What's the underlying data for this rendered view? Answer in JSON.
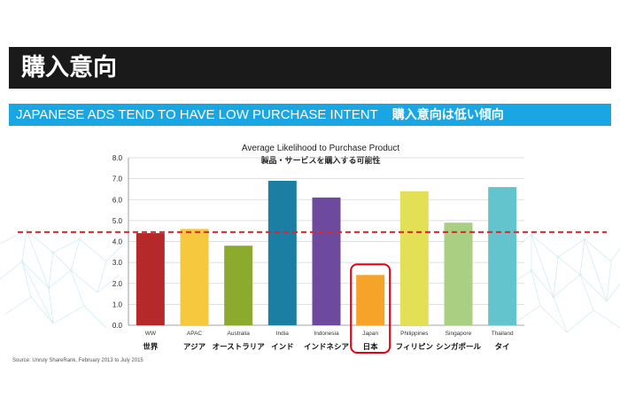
{
  "header": {
    "title": "購入意向",
    "subtitle_en": "JAPANESE ADS TEND TO HAVE LOW PURCHASE INTENT",
    "subtitle_jp": "購入意向は低い傾向"
  },
  "footer": {
    "source": "Source: Unruly ShareRank, February 2013 to July 2015"
  },
  "colors": {
    "header_bg": "#1a1a1a",
    "subheader_bg": "#1aa5e3",
    "average_line": "#d9272e",
    "highlight_box": "#e60012"
  },
  "chart_data": {
    "type": "bar",
    "title": "Average Likelihood to Purchase Product",
    "subtitle": "製品・サービスを購入する可能性",
    "categories": [
      "WW",
      "APAC",
      "Australia",
      "India",
      "Indonesia",
      "Japan",
      "Philippines",
      "Singapore",
      "Thailand"
    ],
    "categories_jp": [
      "世界",
      "アジア",
      "オーストラリア",
      "インド",
      "インドネシア",
      "日本",
      "フィリピン",
      "シンガポール",
      "タイ"
    ],
    "values": [
      4.4,
      4.6,
      3.8,
      6.9,
      6.1,
      2.4,
      6.4,
      4.9,
      6.6
    ],
    "bar_colors": [
      "#b5292b",
      "#f5c83d",
      "#8cab2e",
      "#1b7ea3",
      "#6d4a9e",
      "#f6a32a",
      "#e4e056",
      "#a9cf83",
      "#64c4ce"
    ],
    "ylim": [
      0,
      8
    ],
    "yticks": [
      "0.0",
      "1.0",
      "2.0",
      "3.0",
      "4.0",
      "5.0",
      "6.0",
      "7.0",
      "8.0"
    ],
    "reference_line": 4.45,
    "highlight_category": "Japan",
    "grid": true
  }
}
